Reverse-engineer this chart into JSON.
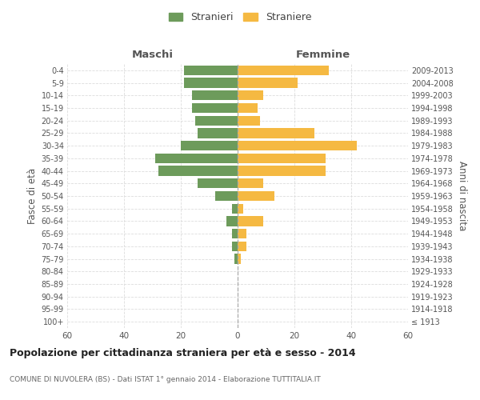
{
  "age_groups": [
    "100+",
    "95-99",
    "90-94",
    "85-89",
    "80-84",
    "75-79",
    "70-74",
    "65-69",
    "60-64",
    "55-59",
    "50-54",
    "45-49",
    "40-44",
    "35-39",
    "30-34",
    "25-29",
    "20-24",
    "15-19",
    "10-14",
    "5-9",
    "0-4"
  ],
  "birth_years": [
    "≤ 1913",
    "1914-1918",
    "1919-1923",
    "1924-1928",
    "1929-1933",
    "1934-1938",
    "1939-1943",
    "1944-1948",
    "1949-1953",
    "1954-1958",
    "1959-1963",
    "1964-1968",
    "1969-1973",
    "1974-1978",
    "1979-1983",
    "1984-1988",
    "1989-1993",
    "1994-1998",
    "1999-2003",
    "2004-2008",
    "2009-2013"
  ],
  "maschi": [
    0,
    0,
    0,
    0,
    0,
    1,
    2,
    2,
    4,
    2,
    8,
    14,
    28,
    29,
    20,
    14,
    15,
    16,
    16,
    19,
    19
  ],
  "femmine": [
    0,
    0,
    0,
    0,
    0,
    1,
    3,
    3,
    9,
    2,
    13,
    9,
    31,
    31,
    42,
    27,
    8,
    7,
    9,
    21,
    32
  ],
  "color_maschi": "#6d9b5b",
  "color_femmine": "#f5b942",
  "title": "Popolazione per cittadinanza straniera per età e sesso - 2014",
  "subtitle": "COMUNE DI NUVOLERA (BS) - Dati ISTAT 1° gennaio 2014 - Elaborazione TUTTITALIA.IT",
  "xlabel_left": "Maschi",
  "xlabel_right": "Femmine",
  "ylabel_left": "Fasce di età",
  "ylabel_right": "Anni di nascita",
  "legend_maschi": "Stranieri",
  "legend_femmine": "Straniere",
  "xlim": 60,
  "background_color": "#ffffff",
  "grid_color": "#dddddd"
}
